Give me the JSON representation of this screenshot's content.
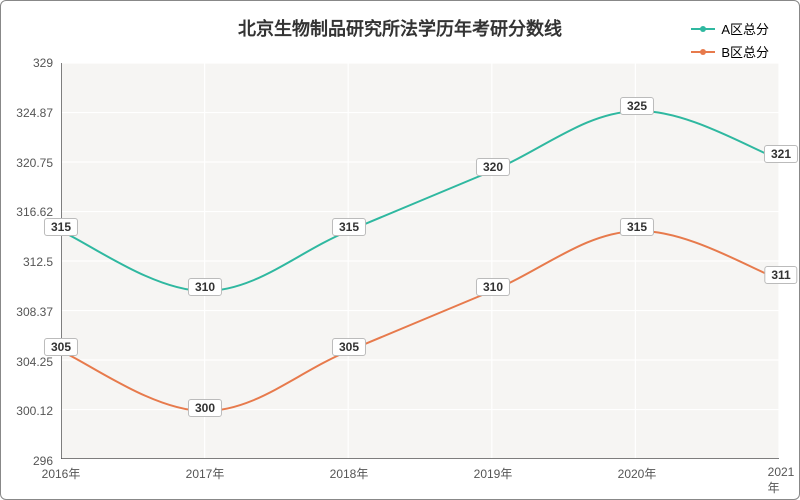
{
  "chart": {
    "type": "line",
    "title": "北京生物制品研究所法学历年考研分数线",
    "title_fontsize": 18,
    "title_color": "#333333",
    "background_color": "#ffffff",
    "border_color": "#888888",
    "plot_background": "#f6f5f3",
    "grid_color": "#ffffff",
    "axis_line_color": "#555555",
    "tick_label_color": "#555555",
    "tick_fontsize": 12,
    "x": {
      "categories": [
        "2016年",
        "2017年",
        "2018年",
        "2019年",
        "2020年",
        "2021年"
      ]
    },
    "y": {
      "min": 296,
      "max": 329,
      "ticks": [
        296,
        300.12,
        304.25,
        308.37,
        312.5,
        316.62,
        320.75,
        324.87,
        329
      ]
    },
    "series": [
      {
        "name": "A区总分",
        "color": "#2fb8a0",
        "line_width": 2,
        "marker_radius": 3,
        "values": [
          315,
          310,
          315,
          320,
          325,
          321
        ],
        "label_offset_y": -5
      },
      {
        "name": "B区总分",
        "color": "#e77a4c",
        "line_width": 2,
        "marker_radius": 3,
        "values": [
          305,
          300,
          305,
          310,
          315,
          311
        ],
        "label_offset_y": -5
      }
    ],
    "legend": {
      "position": "top-right",
      "fontsize": 13,
      "label_color": "#333333"
    },
    "point_label": {
      "background": "#ffffff",
      "border_color": "#bbbbbb",
      "fontsize": 12,
      "color": "#333333"
    },
    "smooth": true
  }
}
